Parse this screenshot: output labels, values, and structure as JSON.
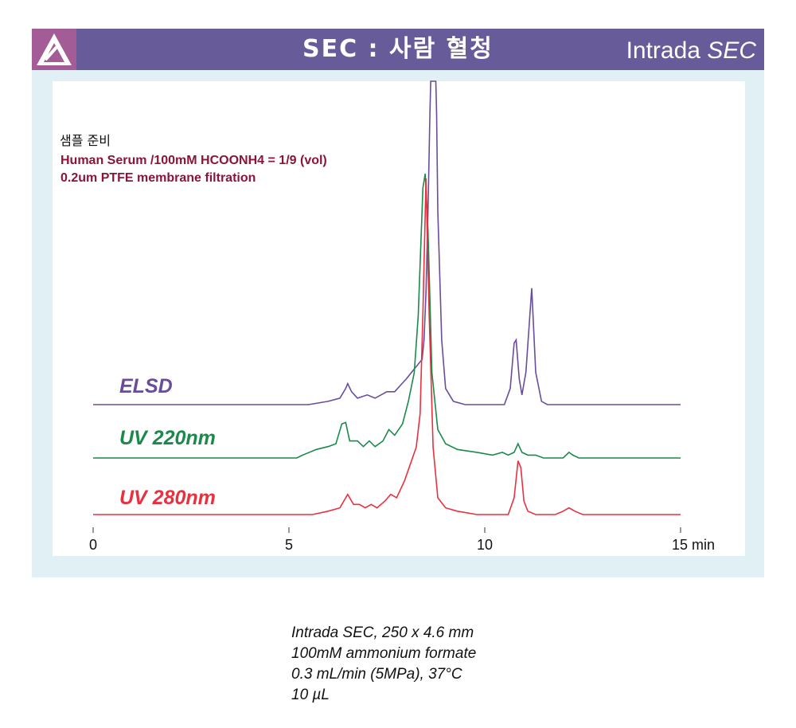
{
  "header": {
    "title": "SEC : 사람 혈청",
    "brand_prefix": "Intrada",
    "brand_suffix": "SEC",
    "color": "#675b9a",
    "logo_color": "#a35c95"
  },
  "sample_prep": {
    "title": "샘플 준비",
    "lines": [
      "Human Serum /100mM HCOONH4 = 1/9 (vol)",
      "0.2um PTFE membrane filtration"
    ]
  },
  "conditions": [
    "Intrada SEC, 250 x 4.6 mm",
    "100mM ammonium formate",
    "0.3 mL/min (5MPa), 37°C",
    "10 µL"
  ],
  "chart_data": {
    "type": "line",
    "xlim": [
      0,
      15
    ],
    "x_ticks": [
      "0",
      "5",
      "10",
      "15 min"
    ],
    "x_tick_values": [
      0,
      5,
      10,
      15
    ],
    "xlabel": "min",
    "grid": false,
    "series": [
      {
        "name": "ELSD",
        "color": "#6a4c9c",
        "baseline": 0.0,
        "points": [
          [
            0,
            0
          ],
          [
            5.5,
            0
          ],
          [
            6.0,
            0.01
          ],
          [
            6.3,
            0.02
          ],
          [
            6.45,
            0.05
          ],
          [
            6.5,
            0.065
          ],
          [
            6.6,
            0.04
          ],
          [
            6.75,
            0.02
          ],
          [
            7.0,
            0.03
          ],
          [
            7.2,
            0.02
          ],
          [
            7.5,
            0.04
          ],
          [
            7.7,
            0.04
          ],
          [
            7.85,
            0.06
          ],
          [
            8.0,
            0.08
          ],
          [
            8.2,
            0.11
          ],
          [
            8.4,
            0.14
          ],
          [
            8.45,
            0.2
          ],
          [
            8.5,
            0.35
          ],
          [
            8.55,
            0.6
          ],
          [
            8.6,
            0.9
          ],
          [
            8.62,
            1.0
          ],
          [
            8.75,
            1.0
          ],
          [
            8.77,
            0.9
          ],
          [
            8.8,
            0.6
          ],
          [
            8.9,
            0.2
          ],
          [
            9.0,
            0.05
          ],
          [
            9.2,
            0.01
          ],
          [
            9.5,
            0
          ],
          [
            10.5,
            0
          ],
          [
            10.65,
            0.05
          ],
          [
            10.75,
            0.19
          ],
          [
            10.8,
            0.2
          ],
          [
            10.88,
            0.08
          ],
          [
            10.95,
            0.03
          ],
          [
            11.05,
            0.1
          ],
          [
            11.2,
            0.36
          ],
          [
            11.3,
            0.1
          ],
          [
            11.45,
            0.01
          ],
          [
            11.6,
            0
          ],
          [
            15,
            0
          ]
        ]
      },
      {
        "name": "UV 220nm",
        "color": "#1a8a4a",
        "baseline": 0.0,
        "points": [
          [
            0,
            0
          ],
          [
            5.2,
            0
          ],
          [
            5.35,
            0.01
          ],
          [
            5.7,
            0.03
          ],
          [
            6.0,
            0.04
          ],
          [
            6.2,
            0.05
          ],
          [
            6.35,
            0.12
          ],
          [
            6.45,
            0.125
          ],
          [
            6.55,
            0.06
          ],
          [
            6.75,
            0.06
          ],
          [
            6.9,
            0.04
          ],
          [
            7.05,
            0.06
          ],
          [
            7.2,
            0.04
          ],
          [
            7.4,
            0.06
          ],
          [
            7.55,
            0.1
          ],
          [
            7.7,
            0.08
          ],
          [
            7.9,
            0.12
          ],
          [
            8.05,
            0.2
          ],
          [
            8.2,
            0.3
          ],
          [
            8.3,
            0.5
          ],
          [
            8.42,
            0.95
          ],
          [
            8.48,
            1.0
          ],
          [
            8.55,
            0.8
          ],
          [
            8.65,
            0.3
          ],
          [
            8.8,
            0.1
          ],
          [
            9.0,
            0.05
          ],
          [
            9.3,
            0.03
          ],
          [
            9.8,
            0.02
          ],
          [
            10.2,
            0.01
          ],
          [
            10.45,
            0.02
          ],
          [
            10.6,
            0.01
          ],
          [
            10.75,
            0.02
          ],
          [
            10.85,
            0.05
          ],
          [
            10.95,
            0.02
          ],
          [
            11.1,
            0.01
          ],
          [
            11.3,
            0.01
          ],
          [
            11.5,
            0
          ],
          [
            12.0,
            0
          ],
          [
            12.15,
            0.02
          ],
          [
            12.25,
            0.01
          ],
          [
            12.4,
            0
          ],
          [
            15,
            0
          ]
        ]
      },
      {
        "name": "UV 280nm",
        "color": "#e8303f",
        "baseline": 0.0,
        "points": [
          [
            0,
            0
          ],
          [
            5.6,
            0
          ],
          [
            6.0,
            0.01
          ],
          [
            6.3,
            0.02
          ],
          [
            6.4,
            0.04
          ],
          [
            6.5,
            0.06
          ],
          [
            6.65,
            0.03
          ],
          [
            6.8,
            0.03
          ],
          [
            6.95,
            0.02
          ],
          [
            7.1,
            0.03
          ],
          [
            7.25,
            0.02
          ],
          [
            7.45,
            0.04
          ],
          [
            7.6,
            0.06
          ],
          [
            7.75,
            0.05
          ],
          [
            7.95,
            0.1
          ],
          [
            8.1,
            0.15
          ],
          [
            8.25,
            0.2
          ],
          [
            8.35,
            0.3
          ],
          [
            8.42,
            0.6
          ],
          [
            8.5,
            1.0
          ],
          [
            8.58,
            0.6
          ],
          [
            8.68,
            0.2
          ],
          [
            8.8,
            0.05
          ],
          [
            9.0,
            0.02
          ],
          [
            9.3,
            0.01
          ],
          [
            9.8,
            0
          ],
          [
            10.6,
            0
          ],
          [
            10.75,
            0.05
          ],
          [
            10.85,
            0.16
          ],
          [
            10.92,
            0.14
          ],
          [
            11.0,
            0.04
          ],
          [
            11.1,
            0.01
          ],
          [
            11.3,
            0
          ],
          [
            11.8,
            0
          ],
          [
            12.0,
            0.01
          ],
          [
            12.15,
            0.02
          ],
          [
            12.3,
            0.01
          ],
          [
            12.5,
            0
          ],
          [
            15,
            0
          ]
        ]
      }
    ]
  }
}
